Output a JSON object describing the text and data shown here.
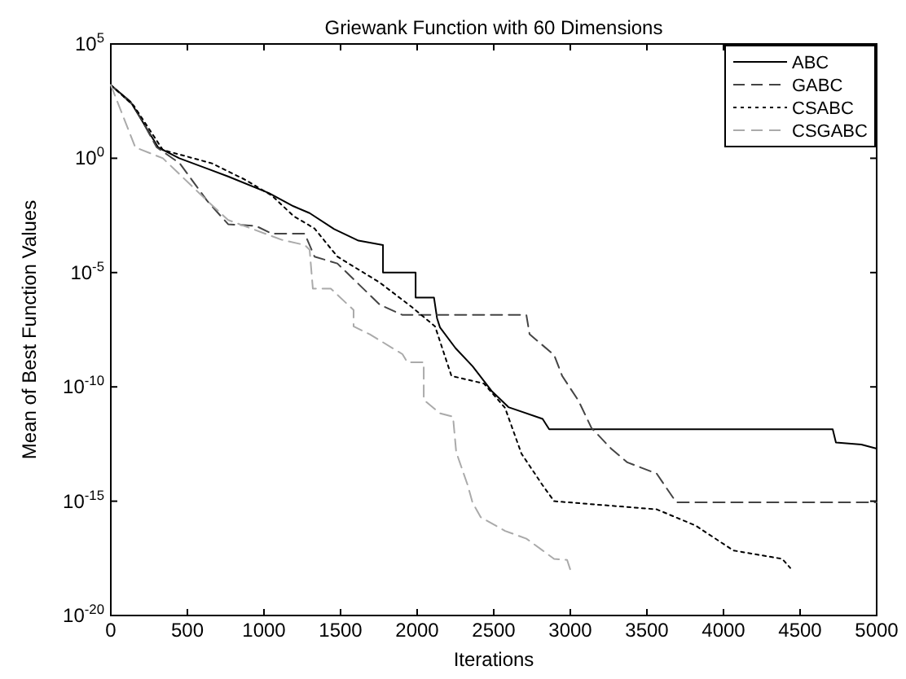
{
  "chart_data": {
    "type": "line",
    "title": "Griewank Function with 60 Dimensions",
    "xlabel": "Iterations",
    "ylabel": "Mean of Best Function Values",
    "log": "y",
    "xlim": [
      0,
      5000
    ],
    "xticks": [
      0,
      500,
      1000,
      1500,
      2000,
      2500,
      3000,
      3500,
      4000,
      4500,
      5000
    ],
    "ylim": [
      1e-20,
      100000.0
    ],
    "yticks": [
      {
        "value": 100000.0,
        "label": "10$^{5}$"
      },
      {
        "value": 1,
        "label": "10$^{0}$"
      },
      {
        "value": 1e-05,
        "label": "10$^{-5}$"
      },
      {
        "value": 1e-10,
        "label": "10$^{-10}$"
      },
      {
        "value": 1e-15,
        "label": "10$^{-15}$"
      },
      {
        "value": 1e-20,
        "label": "10$^{-20}$"
      }
    ],
    "grid": false,
    "legend": "top right",
    "series": [
      {
        "name": "ABC",
        "color": "#000000",
        "line_style": "solid",
        "x": [
          0,
          128,
          309,
          447,
          766,
          1032,
          1192,
          1298,
          1458,
          1617,
          1777,
          1777,
          1990,
          1990,
          2110,
          2130,
          2149,
          2250,
          2362,
          2489,
          2596,
          2819,
          2862,
          4713,
          4734,
          4900,
          5000
        ],
        "values": [
          1600.0,
          300.0,
          3,
          1,
          0.16,
          0.03,
          0.008,
          0.004,
          0.0008,
          0.00025,
          0.00016,
          1e-05,
          1e-05,
          8e-07,
          8e-07,
          1e-07,
          4e-08,
          5e-09,
          8e-10,
          6.3e-11,
          1.3e-11,
          4e-12,
          1.4e-12,
          1.4e-12,
          3.7e-13,
          3e-13,
          2e-13
        ]
      },
      {
        "name": "GABC",
        "color": "#444444",
        "line_style": "dashed",
        "x": [
          0,
          150,
          300,
          450,
          628,
          766,
          947,
          1053,
          1266,
          1330,
          1479,
          1755,
          1904,
          2713,
          2734,
          2894,
          2947,
          3053,
          3138,
          3266,
          3372,
          3564,
          3638,
          3691,
          5000
        ],
        "values": [
          1600.0,
          200.0,
          3,
          0.6,
          0.014,
          0.0013,
          0.0011,
          0.0005,
          0.0005,
          5e-05,
          2.5e-05,
          4e-07,
          1.4e-07,
          1.4e-07,
          2e-08,
          2.5e-09,
          3e-10,
          2.5e-11,
          1.6e-12,
          2e-13,
          5e-14,
          1.6e-14,
          3e-15,
          9e-16,
          9e-16
        ]
      },
      {
        "name": "CSABC",
        "color": "#000000",
        "line_style": "dotted",
        "x": [
          0,
          150,
          340,
          660,
          872,
          1053,
          1192,
          1330,
          1479,
          1755,
          1968,
          2117,
          2224,
          2436,
          2574,
          2681,
          2819,
          2894,
          3564,
          3819,
          4064,
          4383,
          4436
        ],
        "values": [
          1600.0,
          200.0,
          2.3,
          0.6,
          0.12,
          0.023,
          0.003,
          0.00085,
          5e-05,
          3.7e-06,
          3e-07,
          4.4e-08,
          3e-10,
          1.4e-10,
          1.2e-11,
          1.2e-13,
          5e-15,
          1e-15,
          4.4e-16,
          8.5e-17,
          7e-18,
          3e-18,
          1.2e-18
        ]
      },
      {
        "name": "CSGABC",
        "color": "#aaaaaa",
        "line_style": "dashed",
        "x": [
          0,
          160,
          340,
          628,
          766,
          1117,
          1266,
          1298,
          1319,
          1436,
          1585,
          1585,
          1691,
          1904,
          1936,
          2043,
          2043,
          2149,
          2234,
          2255,
          2330,
          2362,
          2415,
          2574,
          2713,
          2819,
          2894,
          2979,
          3000
        ],
        "values": [
          1600.0,
          3,
          1,
          0.014,
          0.002,
          0.00027,
          0.00016,
          0.0001,
          2e-06,
          2e-06,
          2.3e-07,
          4.4e-08,
          2e-08,
          2.7e-09,
          1.2e-09,
          1.2e-09,
          2.7e-11,
          7e-12,
          5e-12,
          1.4e-13,
          5e-15,
          8.5e-16,
          2e-16,
          5e-17,
          2.3e-17,
          7e-18,
          3e-18,
          2.7e-18,
          1e-18
        ]
      }
    ]
  }
}
